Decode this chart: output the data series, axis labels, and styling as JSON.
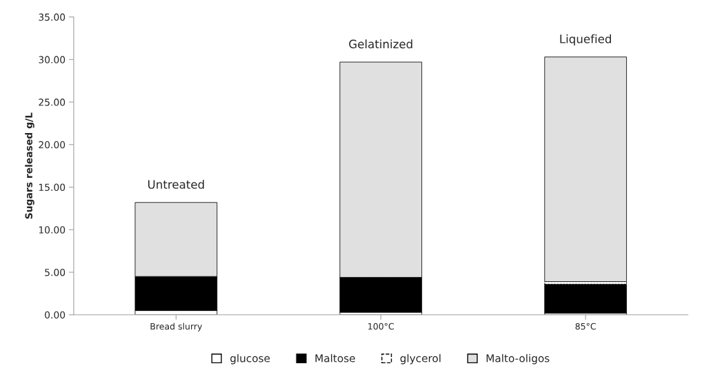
{
  "chart_data": {
    "type": "bar",
    "stacked": true,
    "ylabel": "Sugars released g/L",
    "categories": [
      "Bread slurry",
      "100°C",
      "85°C"
    ],
    "series": [
      {
        "name": "glucose",
        "color": "#ffffff",
        "values": [
          0.5,
          0.3,
          0.2
        ]
      },
      {
        "name": "Maltose",
        "color": "#000000",
        "values": [
          4.0,
          4.1,
          3.4
        ]
      },
      {
        "name": "glycerol",
        "color": "#ffffff",
        "line_style": "dashed",
        "values": [
          0,
          0,
          0.3
        ]
      },
      {
        "name": "Malto-oligos",
        "color": "#e0e0e0",
        "values": [
          8.7,
          25.3,
          26.4
        ]
      }
    ],
    "ylim": [
      0,
      35
    ],
    "yticks": [
      {
        "value": 0,
        "label": "0.00"
      },
      {
        "value": 5,
        "label": "5.00"
      },
      {
        "value": 10,
        "label": "10.00"
      },
      {
        "value": 15,
        "label": "15.00"
      },
      {
        "value": 20,
        "label": "20.00"
      },
      {
        "value": 25,
        "label": "25.00"
      },
      {
        "value": 30,
        "label": "30.00"
      },
      {
        "value": 35,
        "label": "35.00"
      }
    ],
    "annotations": [
      {
        "text": "Untreated",
        "x": "Bread slurry",
        "y": 13.2
      },
      {
        "text": "Gelatinized",
        "x": "100°C",
        "y": 29.7
      },
      {
        "text": "Liquefied",
        "x": "85°C",
        "y": 30.3
      }
    ],
    "legend": "bottom",
    "grid": false
  }
}
